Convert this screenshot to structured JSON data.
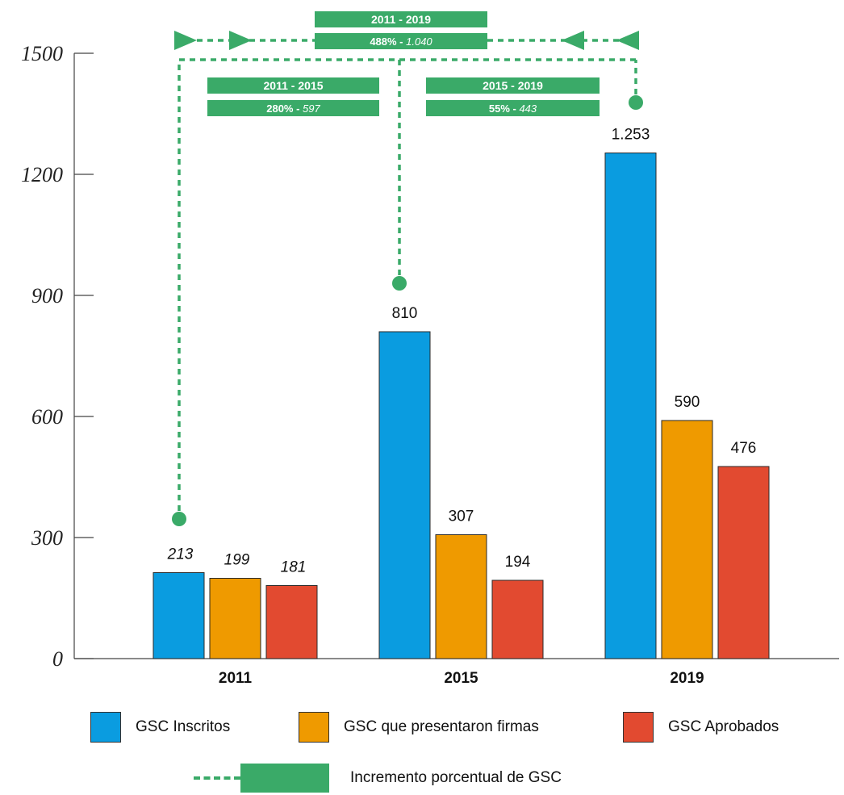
{
  "chart_data": {
    "type": "bar",
    "categories": [
      "2011",
      "2015",
      "2019"
    ],
    "series": [
      {
        "name": "GSC Inscritos",
        "color": "#0a9ce0",
        "values": [
          213,
          810,
          1253
        ],
        "labels": [
          "213",
          "810",
          "1.253"
        ]
      },
      {
        "name": "GSC que presentaron firmas",
        "color": "#ef9a00",
        "values": [
          199,
          307,
          590
        ],
        "labels": [
          "199",
          "307",
          "590"
        ]
      },
      {
        "name": "GSC Aprobados",
        "color": "#e24a30",
        "values": [
          181,
          194,
          476
        ],
        "labels": [
          "181",
          "194",
          "476"
        ]
      }
    ],
    "italic_value_labels_category": "2011",
    "ylim": [
      0,
      1500
    ],
    "yticks": [
      "0",
      "300",
      "600",
      "900",
      "1200",
      "1500"
    ],
    "title": "",
    "xlabel": "",
    "ylabel": "",
    "grid": false,
    "legend_position": "bottom",
    "annotations": [
      {
        "period": "2011 - 2015",
        "detail_pct": "280%",
        "detail_abs": "597"
      },
      {
        "period": "2015 - 2019",
        "detail_pct": "55%",
        "detail_abs": "443"
      },
      {
        "period": "2011 - 2019",
        "detail_pct": "488%",
        "detail_abs": "1.040"
      }
    ],
    "annotation_color": "#3aaa68"
  },
  "legend": {
    "items": [
      {
        "label": "GSC Inscritos",
        "color": "#0a9ce0"
      },
      {
        "label": "GSC que presentaron firmas",
        "color": "#ef9a00"
      },
      {
        "label": "GSC Aprobados",
        "color": "#e24a30"
      }
    ],
    "increment_label": "Incremento porcentual de GSC"
  }
}
